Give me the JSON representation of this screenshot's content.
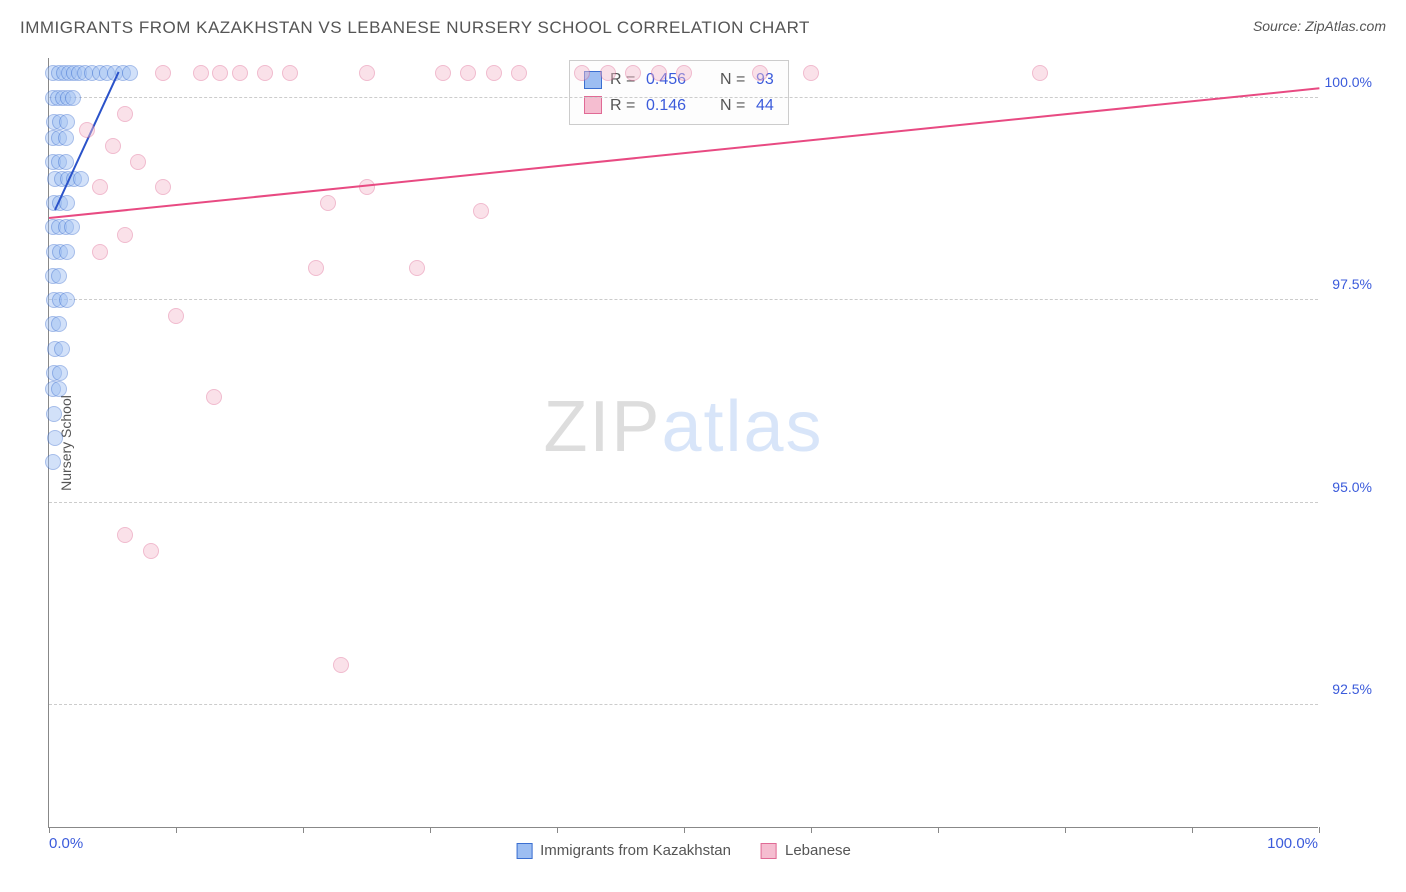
{
  "header": {
    "title": "IMMIGRANTS FROM KAZAKHSTAN VS LEBANESE NURSERY SCHOOL CORRELATION CHART",
    "source": "Source: ZipAtlas.com"
  },
  "chart": {
    "type": "scatter",
    "ylabel": "Nursery School",
    "xlim": [
      0,
      100
    ],
    "ylim": [
      91.0,
      100.5
    ],
    "xtick_positions": [
      0,
      10,
      20,
      30,
      40,
      50,
      60,
      70,
      80,
      90,
      100
    ],
    "ytick_positions": [
      92.5,
      95.0,
      97.5,
      100.0
    ],
    "ytick_labels": [
      "92.5%",
      "95.0%",
      "97.5%",
      "100.0%"
    ],
    "x_axis_min_label": "0.0%",
    "x_axis_max_label": "100.0%",
    "grid_color": "#cccccc",
    "background_color": "#ffffff",
    "axis_color": "#888888",
    "tick_label_color": "#3b5bdb",
    "label_fontsize": 14,
    "marker_radius": 8,
    "marker_opacity": 0.45,
    "watermark": {
      "text_bold": "ZIP",
      "text_light": "atlas"
    },
    "series": [
      {
        "name": "Immigrants from Kazakhstan",
        "color_fill": "#9dbef2",
        "color_stroke": "#3b6fd1",
        "R": "0.456",
        "N": "93",
        "trendline": {
          "x1": 0.5,
          "y1": 98.6,
          "x2": 5.5,
          "y2": 100.3,
          "color": "#2a52c9",
          "width": 2
        },
        "points": [
          [
            0.3,
            100.3
          ],
          [
            0.8,
            100.3
          ],
          [
            1.2,
            100.3
          ],
          [
            1.6,
            100.3
          ],
          [
            2.0,
            100.3
          ],
          [
            2.4,
            100.3
          ],
          [
            2.8,
            100.3
          ],
          [
            3.4,
            100.3
          ],
          [
            4.0,
            100.3
          ],
          [
            4.6,
            100.3
          ],
          [
            5.2,
            100.3
          ],
          [
            5.8,
            100.3
          ],
          [
            6.4,
            100.3
          ],
          [
            0.3,
            100.0
          ],
          [
            0.7,
            100.0
          ],
          [
            1.1,
            100.0
          ],
          [
            1.5,
            100.0
          ],
          [
            1.9,
            100.0
          ],
          [
            0.4,
            99.7
          ],
          [
            0.9,
            99.7
          ],
          [
            1.4,
            99.7
          ],
          [
            0.3,
            99.5
          ],
          [
            0.8,
            99.5
          ],
          [
            1.3,
            99.5
          ],
          [
            0.3,
            99.2
          ],
          [
            0.8,
            99.2
          ],
          [
            1.3,
            99.2
          ],
          [
            0.5,
            99.0
          ],
          [
            1.0,
            99.0
          ],
          [
            1.5,
            99.0
          ],
          [
            2.0,
            99.0
          ],
          [
            2.5,
            99.0
          ],
          [
            0.4,
            98.7
          ],
          [
            0.9,
            98.7
          ],
          [
            1.4,
            98.7
          ],
          [
            0.3,
            98.4
          ],
          [
            0.8,
            98.4
          ],
          [
            1.3,
            98.4
          ],
          [
            1.8,
            98.4
          ],
          [
            0.4,
            98.1
          ],
          [
            0.9,
            98.1
          ],
          [
            1.4,
            98.1
          ],
          [
            0.3,
            97.8
          ],
          [
            0.8,
            97.8
          ],
          [
            0.4,
            97.5
          ],
          [
            0.9,
            97.5
          ],
          [
            1.4,
            97.5
          ],
          [
            0.3,
            97.2
          ],
          [
            0.8,
            97.2
          ],
          [
            0.5,
            96.9
          ],
          [
            1.0,
            96.9
          ],
          [
            0.4,
            96.6
          ],
          [
            0.9,
            96.6
          ],
          [
            0.3,
            96.4
          ],
          [
            0.8,
            96.4
          ],
          [
            0.4,
            96.1
          ],
          [
            0.5,
            95.8
          ],
          [
            0.3,
            95.5
          ]
        ]
      },
      {
        "name": "Lebanese",
        "color_fill": "#f5bdd0",
        "color_stroke": "#e06a95",
        "R": "0.146",
        "N": "44",
        "trendline": {
          "x1": 0,
          "y1": 98.5,
          "x2": 100,
          "y2": 100.1,
          "color": "#e84a82",
          "width": 2
        },
        "points": [
          [
            9,
            100.3
          ],
          [
            12,
            100.3
          ],
          [
            13.5,
            100.3
          ],
          [
            15,
            100.3
          ],
          [
            17,
            100.3
          ],
          [
            19,
            100.3
          ],
          [
            25,
            100.3
          ],
          [
            31,
            100.3
          ],
          [
            33,
            100.3
          ],
          [
            35,
            100.3
          ],
          [
            37,
            100.3
          ],
          [
            42,
            100.3
          ],
          [
            44,
            100.3
          ],
          [
            46,
            100.3
          ],
          [
            48,
            100.3
          ],
          [
            50,
            100.3
          ],
          [
            56,
            100.3
          ],
          [
            60,
            100.3
          ],
          [
            78,
            100.3
          ],
          [
            3,
            99.6
          ],
          [
            5,
            99.4
          ],
          [
            6,
            99.8
          ],
          [
            7,
            99.2
          ],
          [
            4,
            98.9
          ],
          [
            9,
            98.9
          ],
          [
            22,
            98.7
          ],
          [
            25,
            98.9
          ],
          [
            34,
            98.6
          ],
          [
            4,
            98.1
          ],
          [
            6,
            98.3
          ],
          [
            21,
            97.9
          ],
          [
            29,
            97.9
          ],
          [
            10,
            97.3
          ],
          [
            13,
            96.3
          ],
          [
            6,
            94.6
          ],
          [
            8,
            94.4
          ],
          [
            23,
            93.0
          ]
        ]
      }
    ],
    "legend_bottom": [
      {
        "label": "Immigrants from Kazakhstan",
        "fill": "#9dbef2",
        "stroke": "#3b6fd1"
      },
      {
        "label": "Lebanese",
        "fill": "#f5bdd0",
        "stroke": "#e06a95"
      }
    ]
  }
}
